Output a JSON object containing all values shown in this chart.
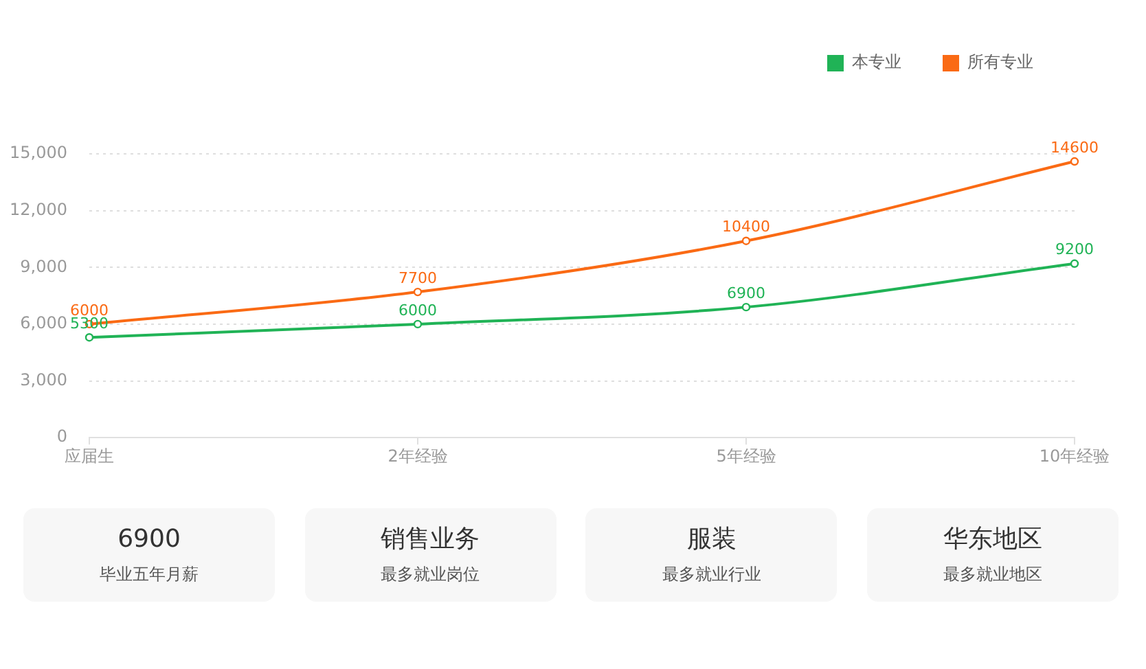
{
  "chart_data": [
    {
      "type": "line",
      "categories": [
        "应届生",
        "2年经验",
        "5年经验",
        "10年经验"
      ],
      "series": [
        {
          "name": "本专业",
          "color": "#20b356",
          "values": [
            5300,
            6000,
            6900,
            9200
          ]
        },
        {
          "name": "所有专业",
          "color": "#fa6a14",
          "values": [
            6000,
            7700,
            10400,
            14600
          ]
        }
      ],
      "ylim": [
        0,
        15000
      ],
      "yticks": [
        0,
        {
          "value": 3000,
          "label": "3,000"
        },
        {
          "value": 6000,
          "label": "6,000"
        },
        {
          "value": 9000,
          "label": "9,000"
        },
        {
          "value": 12000,
          "label": "12,000"
        },
        {
          "value": 15000,
          "label": "15,000"
        }
      ],
      "grid": "y",
      "legend": "top right",
      "marker": "circle",
      "data_labels": true
    },
    {
      "type": "other",
      "title": "6900",
      "subtitle": "毕业五年月薪"
    },
    {
      "type": "other",
      "title": "销售业务",
      "subtitle": "最多就业岗位"
    },
    {
      "type": "other",
      "title": "服装",
      "subtitle": "最多就业行业"
    },
    {
      "type": "other",
      "title": "华东地区",
      "subtitle": "最多就业地区"
    }
  ]
}
